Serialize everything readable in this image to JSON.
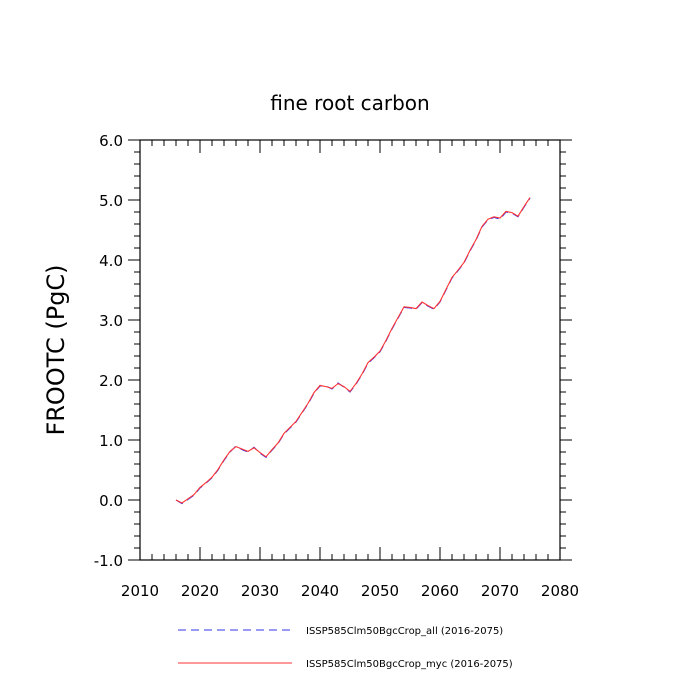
{
  "chart_data": {
    "type": "line",
    "title": "fine root carbon",
    "ylabel": "FROOTC  (PgC)",
    "xlabel": "",
    "xlim": [
      2010,
      2080
    ],
    "ylim": [
      -1.0,
      6.0
    ],
    "x_ticks": [
      2010,
      2020,
      2030,
      2040,
      2050,
      2060,
      2070,
      2080
    ],
    "x_tick_labels": [
      "2010",
      "2020",
      "2030",
      "2040",
      "2050",
      "2060",
      "2070",
      "2080"
    ],
    "y_ticks": [
      -1.0,
      0.0,
      1.0,
      2.0,
      3.0,
      4.0,
      5.0,
      6.0
    ],
    "y_tick_labels": [
      "-1.0",
      "0.0",
      "1.0",
      "2.0",
      "3.0",
      "4.0",
      "5.0",
      "6.0"
    ],
    "grid": false,
    "legend_position": "bottom",
    "x": [
      2016,
      2017,
      2018,
      2019,
      2020,
      2021,
      2022,
      2023,
      2024,
      2025,
      2026,
      2027,
      2028,
      2029,
      2030,
      2031,
      2032,
      2033,
      2034,
      2035,
      2036,
      2037,
      2038,
      2039,
      2040,
      2041,
      2042,
      2043,
      2044,
      2045,
      2046,
      2047,
      2048,
      2049,
      2050,
      2051,
      2052,
      2053,
      2054,
      2055,
      2056,
      2057,
      2058,
      2059,
      2060,
      2061,
      2062,
      2063,
      2064,
      2065,
      2066,
      2067,
      2068,
      2069,
      2070,
      2071,
      2072,
      2073,
      2074,
      2075
    ],
    "series": [
      {
        "name": "ISSP585Clm50BgcCrop_all (2016-2075)",
        "color": "#3333ee",
        "dash": "dashed",
        "values": [
          0.0,
          -0.06,
          0.01,
          0.08,
          0.2,
          0.28,
          0.37,
          0.5,
          0.66,
          0.8,
          0.9,
          0.84,
          0.8,
          0.88,
          0.78,
          0.71,
          0.83,
          0.94,
          1.1,
          1.2,
          1.3,
          1.45,
          1.6,
          1.78,
          1.9,
          1.9,
          1.85,
          1.95,
          1.88,
          1.8,
          1.93,
          2.09,
          2.28,
          2.37,
          2.47,
          2.65,
          2.85,
          3.03,
          3.21,
          3.2,
          3.18,
          3.29,
          3.23,
          3.18,
          3.3,
          3.5,
          3.7,
          3.82,
          3.95,
          4.15,
          4.33,
          4.55,
          4.67,
          4.71,
          4.68,
          4.8,
          4.78,
          4.72,
          4.88,
          5.03
        ]
      },
      {
        "name": "ISSP585Clm50BgcCrop_myc (2016-2075)",
        "color": "#ff3333",
        "dash": "solid",
        "values": [
          0.0,
          -0.05,
          0.02,
          0.09,
          0.21,
          0.29,
          0.38,
          0.51,
          0.67,
          0.81,
          0.89,
          0.85,
          0.81,
          0.87,
          0.79,
          0.72,
          0.84,
          0.95,
          1.11,
          1.21,
          1.31,
          1.46,
          1.61,
          1.79,
          1.91,
          1.89,
          1.86,
          1.94,
          1.89,
          1.81,
          1.94,
          2.1,
          2.29,
          2.38,
          2.48,
          2.66,
          2.86,
          3.04,
          3.22,
          3.21,
          3.19,
          3.3,
          3.24,
          3.19,
          3.31,
          3.51,
          3.71,
          3.83,
          3.96,
          4.16,
          4.34,
          4.56,
          4.68,
          4.72,
          4.7,
          4.81,
          4.79,
          4.73,
          4.89,
          5.04
        ]
      }
    ]
  }
}
